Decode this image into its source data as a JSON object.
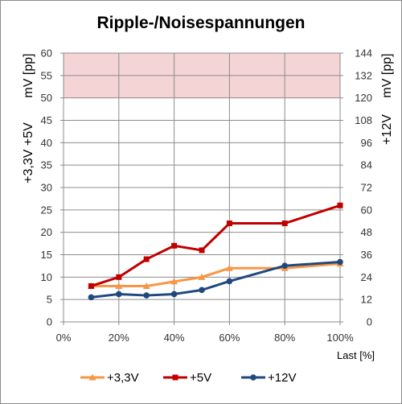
{
  "chart_data": {
    "type": "line",
    "title": "Ripple-/Noisespannungen",
    "xlabel": "Last [%]",
    "ylabel_left": "+3,3V +5V",
    "ylabel_left_unit": "mV [pp]",
    "ylabel_right": "+12V",
    "ylabel_right_unit": "mV [pp]",
    "x_ticks": [
      "0%",
      "20%",
      "40%",
      "60%",
      "80%",
      "100%"
    ],
    "xlim": [
      0,
      100
    ],
    "ylim_left": [
      0,
      60
    ],
    "ylim_right": [
      0,
      144
    ],
    "y_ticks_left": [
      "0",
      "5",
      "10",
      "15",
      "20",
      "25",
      "30",
      "35",
      "40",
      "45",
      "50",
      "55",
      "60"
    ],
    "y_ticks_right": [
      "0",
      "12",
      "24",
      "36",
      "48",
      "60",
      "72",
      "84",
      "96",
      "108",
      "120",
      "132",
      "144"
    ],
    "limit_band": {
      "from": 50,
      "to": 60,
      "color": "#f4d4d4"
    },
    "grid": true,
    "legend_position": "bottom",
    "x": [
      10,
      20,
      30,
      40,
      50,
      60,
      80,
      100
    ],
    "series": [
      {
        "name": "+3,3V",
        "axis": "left",
        "color": "#f79646",
        "marker": "triangle",
        "values": [
          8,
          8,
          8,
          9,
          10,
          12,
          12,
          13
        ]
      },
      {
        "name": "+5V",
        "axis": "left",
        "color": "#c00000",
        "marker": "square",
        "values": [
          8,
          10,
          14,
          17,
          16,
          22,
          22,
          26
        ]
      },
      {
        "name": "+12V",
        "axis": "right",
        "color": "#1f497d",
        "marker": "circle",
        "values": [
          13.2,
          14.9,
          14.2,
          14.9,
          17.1,
          21.8,
          30.1,
          32.1
        ]
      }
    ]
  }
}
